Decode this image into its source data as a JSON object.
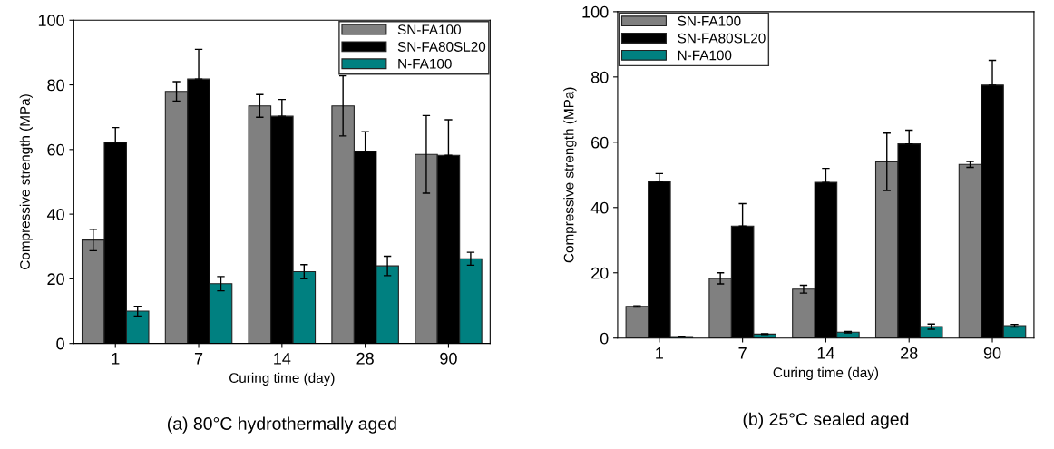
{
  "chart_data": [
    {
      "type": "bar",
      "title": "(a) 80°C hydrothermally aged",
      "xlabel": "Curing time (day)",
      "ylabel": "Compressive strength (MPa)",
      "categories": [
        "1",
        "7",
        "14",
        "28",
        "90"
      ],
      "ylim": [
        0,
        100
      ],
      "yticks": [
        0,
        20,
        40,
        60,
        80,
        100
      ],
      "legend": "top right",
      "grid": false,
      "series": [
        {
          "name": "SN-FA100",
          "color": "#808080",
          "values": [
            32,
            78,
            73.5,
            73.5,
            58.5
          ],
          "errors": [
            3.3,
            3,
            3.5,
            9.3,
            12
          ]
        },
        {
          "name": "SN-FA80SL20",
          "color": "#000000",
          "values": [
            62.3,
            81.8,
            70.3,
            59.5,
            58.2
          ],
          "errors": [
            [
              62.3,
              66.8
            ],
            [
              81.8,
              91
            ],
            [
              70.3,
              75.5
            ],
            [
              59.5,
              65.5
            ],
            [
              58.2,
              69.2
            ]
          ]
        },
        {
          "name": "N-FA100",
          "color": "#008080",
          "values": [
            10,
            18.5,
            22.2,
            24,
            26.2
          ],
          "errors": [
            1.5,
            2.2,
            2.2,
            3,
            2
          ]
        }
      ]
    },
    {
      "type": "bar",
      "title": "(b) 25°C sealed aged",
      "xlabel": "Curing time (day)",
      "ylabel": "Compressive strength (MPa)",
      "categories": [
        "1",
        "7",
        "14",
        "28",
        "90"
      ],
      "ylim": [
        0,
        100
      ],
      "yticks": [
        0,
        20,
        40,
        60,
        80,
        100
      ],
      "legend": "top left",
      "grid": false,
      "series": [
        {
          "name": "SN-FA100",
          "color": "#808080",
          "values": [
            9.7,
            18.3,
            15,
            54,
            53.2
          ],
          "errors": [
            0.2,
            1.7,
            1.2,
            8.8,
            0.9
          ]
        },
        {
          "name": "SN-FA80SL20",
          "color": "#000000",
          "values": [
            48,
            34.3,
            47.7,
            59.5,
            77.5
          ],
          "errors": [
            [
              48,
              50.4
            ],
            [
              34.3,
              41.2
            ],
            [
              47.7,
              52
            ],
            [
              59.5,
              63.7
            ],
            [
              77.5,
              85.1
            ]
          ]
        },
        {
          "name": "N-FA100",
          "color": "#008080",
          "values": [
            0.5,
            1.2,
            1.8,
            3.5,
            3.8
          ],
          "errors": [
            0.1,
            0.1,
            0.2,
            0.8,
            0.4
          ]
        }
      ]
    }
  ]
}
